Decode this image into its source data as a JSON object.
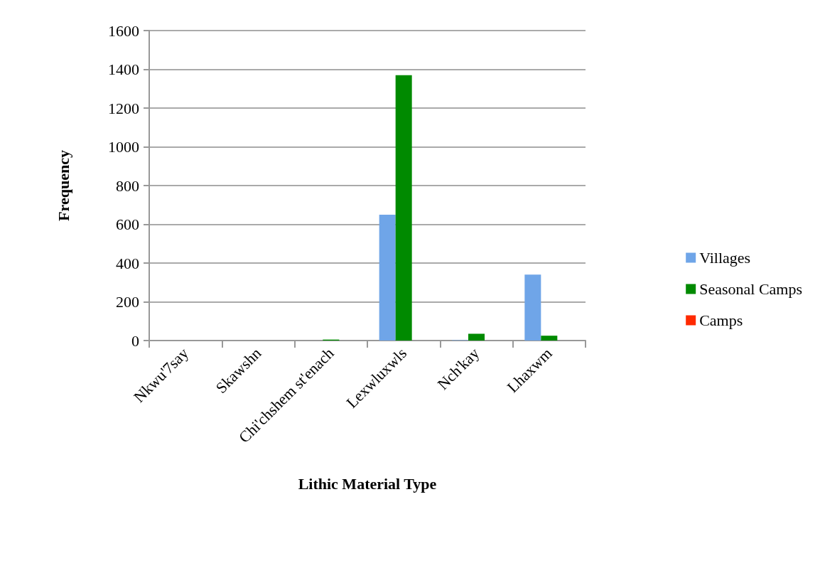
{
  "chart_data": {
    "type": "bar",
    "xlabel": "Lithic Material Type",
    "ylabel": "Frequency",
    "categories": [
      "Nkwu'7say",
      "Skawshn",
      "Chi'chshem st'enach",
      "Lexwluxwls",
      "Nch'kay",
      "Lhaxwm"
    ],
    "series": [
      {
        "name": "Villages",
        "color": "#6fa5e8",
        "values": [
          0,
          0,
          0,
          650,
          2,
          340
        ]
      },
      {
        "name": "Seasonal Camps",
        "color": "#008a00",
        "values": [
          0,
          0,
          5,
          1370,
          35,
          25
        ]
      },
      {
        "name": "Camps",
        "color": "#ff2a00",
        "values": [
          0,
          0,
          0,
          0,
          0,
          0
        ]
      }
    ],
    "ylim": [
      0,
      1600
    ],
    "yticks": [
      0,
      200,
      400,
      600,
      800,
      1000,
      1200,
      1400,
      1600
    ],
    "grid": "y",
    "legend": "right"
  }
}
